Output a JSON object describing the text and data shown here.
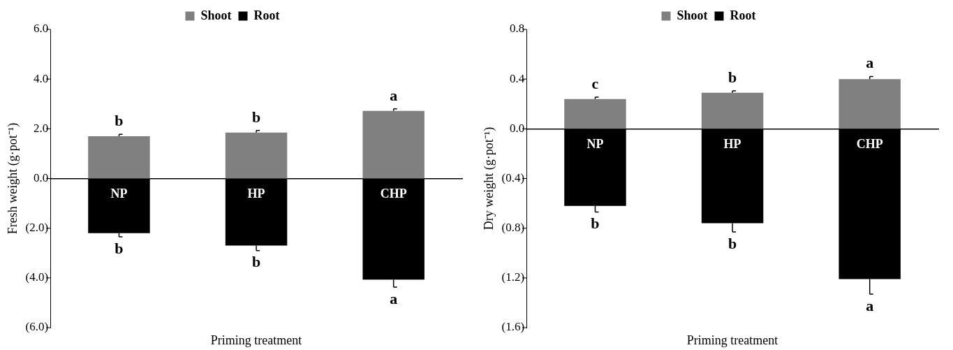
{
  "chart_data": [
    {
      "type": "bar",
      "stacked": true,
      "categories": [
        "NP",
        "HP",
        "CHP"
      ],
      "xlabel": "Priming treatment",
      "ylabel": "Fresh weight (g·pot⁻¹)",
      "series": [
        {
          "name": "Shoot",
          "color": "#808080",
          "values": [
            1.7,
            1.85,
            2.72
          ],
          "errors": [
            0.08,
            0.08,
            0.08
          ],
          "value_labels": [
            "b",
            "b",
            "a"
          ]
        },
        {
          "name": "Root",
          "color": "#000000",
          "values": [
            -2.2,
            -2.7,
            -4.07
          ],
          "errors": [
            0.15,
            0.2,
            0.3
          ],
          "value_labels": [
            "b",
            "b",
            "a"
          ]
        }
      ],
      "ylim": [
        -6,
        6
      ],
      "yticks": [
        {
          "value": -6,
          "label": "(6.0)"
        },
        {
          "value": -4,
          "label": "(4.0)"
        },
        {
          "value": -2,
          "label": "(2.0)"
        },
        {
          "value": 0,
          "label": "0.0"
        },
        {
          "value": 2,
          "label": "2.0"
        },
        {
          "value": 4,
          "label": "4.0"
        },
        {
          "value": 6,
          "label": "6.0"
        }
      ],
      "tick_labels": "y",
      "legend": "top"
    },
    {
      "type": "bar",
      "stacked": true,
      "categories": [
        "NP",
        "HP",
        "CHP"
      ],
      "xlabel": "Priming treatment",
      "ylabel": "Dry weight (g·pot⁻¹)",
      "series": [
        {
          "name": "Shoot",
          "color": "#808080",
          "values": [
            0.24,
            0.29,
            0.4
          ],
          "errors": [
            0.015,
            0.015,
            0.02
          ],
          "value_labels": [
            "c",
            "b",
            "a"
          ]
        },
        {
          "name": "Root",
          "color": "#000000",
          "values": [
            -0.62,
            -0.76,
            -1.21
          ],
          "errors": [
            0.05,
            0.07,
            0.12
          ],
          "value_labels": [
            "b",
            "b",
            "a"
          ]
        }
      ],
      "ylim": [
        -1.6,
        0.8
      ],
      "yticks": [
        {
          "value": -1.6,
          "label": "(1.6)"
        },
        {
          "value": -1.2,
          "label": "(1.2)"
        },
        {
          "value": -0.8,
          "label": "(0.8)"
        },
        {
          "value": -0.4,
          "label": "(0.4)"
        },
        {
          "value": 0,
          "label": "0.0"
        },
        {
          "value": 0.4,
          "label": "0.4"
        },
        {
          "value": 0.8,
          "label": "0.8"
        }
      ],
      "tick_labels": "y",
      "legend": "top"
    }
  ]
}
